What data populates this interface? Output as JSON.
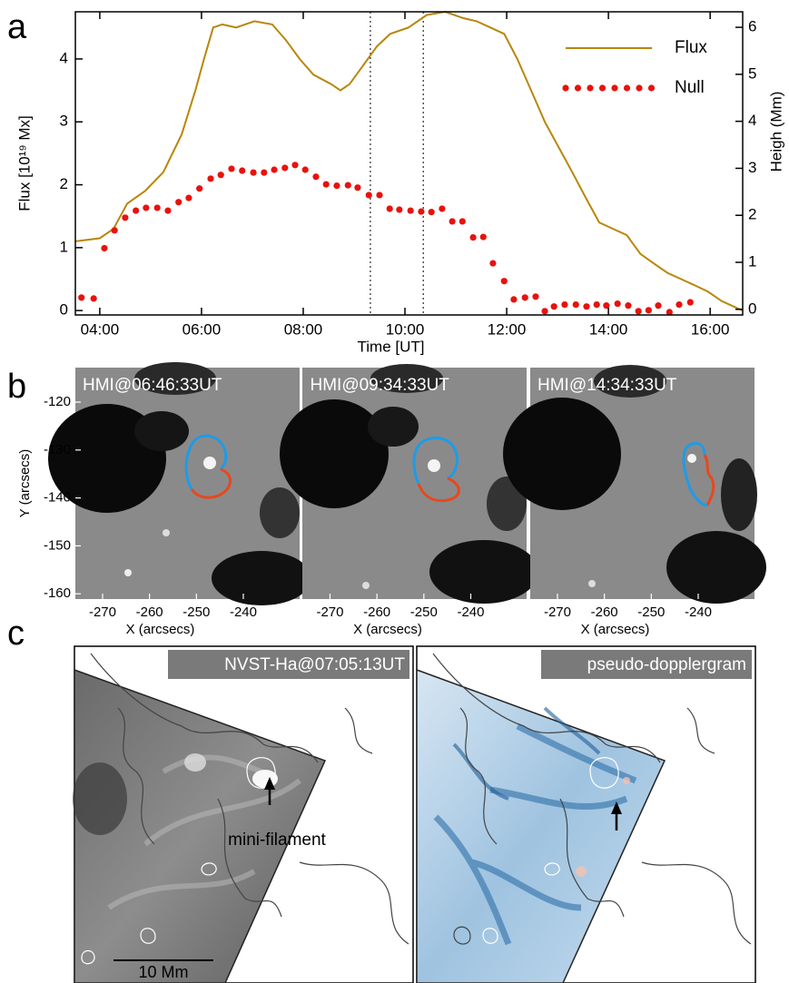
{
  "panel_labels": [
    "a",
    "b",
    "c"
  ],
  "chart_data": {
    "type": "line",
    "xlabel": "Time [UT]",
    "ylabel": "Flux [10¹⁹ Mx]",
    "y2label": "Heigh (Mm)",
    "xlim": [
      3.52,
      16.64
    ],
    "xticks": [
      {
        "value": 4,
        "label": "04:00"
      },
      {
        "value": 6,
        "label": "06:00"
      },
      {
        "value": 8,
        "label": "08:00"
      },
      {
        "value": 10,
        "label": "10:00"
      },
      {
        "value": 12,
        "label": "12:00"
      },
      {
        "value": 14,
        "label": "14:00"
      },
      {
        "value": 16,
        "label": "16:00"
      }
    ],
    "ylim": [
      -0.07,
      4.75
    ],
    "yticks": [
      0,
      1,
      2,
      3,
      4
    ],
    "y2lim": [
      -0.12,
      6.33
    ],
    "y2ticks": [
      0,
      1,
      2,
      3,
      4,
      5,
      6
    ],
    "legend": "upper right",
    "vlines": [
      9.32,
      10.36
    ],
    "series": [
      {
        "name": "Flux",
        "color": "#b8860b",
        "style": "line",
        "x": [
          3.52,
          4,
          4.27,
          4.54,
          4.89,
          5.25,
          5.61,
          5.88,
          6.05,
          6.23,
          6.41,
          6.68,
          7.04,
          7.39,
          7.66,
          7.93,
          8.2,
          8.55,
          8.73,
          8.91,
          9.18,
          9.45,
          9.71,
          10.07,
          10.43,
          10.79,
          11.14,
          11.41,
          11.68,
          11.95,
          12.21,
          12.48,
          12.75,
          13.02,
          13.29,
          13.55,
          13.82,
          14.09,
          14.36,
          14.63,
          14.89,
          15.16,
          15.43,
          15.7,
          15.96,
          16.23,
          16.5,
          16.64
        ],
        "values": [
          1.1,
          1.15,
          1.3,
          1.7,
          1.9,
          2.2,
          2.8,
          3.5,
          4.0,
          4.5,
          4.55,
          4.5,
          4.6,
          4.55,
          4.3,
          4.0,
          3.75,
          3.6,
          3.5,
          3.6,
          3.9,
          4.2,
          4.4,
          4.5,
          4.7,
          4.75,
          4.65,
          4.6,
          4.5,
          4.4,
          4.0,
          3.5,
          3.0,
          2.6,
          2.2,
          1.8,
          1.4,
          1.3,
          1.2,
          0.9,
          0.75,
          0.6,
          0.5,
          0.4,
          0.3,
          0.15,
          0.05,
          0
        ]
      },
      {
        "name": "Null",
        "color": "#e8120c",
        "style": "dots",
        "axis": "y2",
        "x": [
          3.64,
          3.88,
          4.09,
          4.29,
          4.5,
          4.71,
          4.91,
          5.13,
          5.34,
          5.55,
          5.75,
          5.96,
          6.18,
          6.38,
          6.59,
          6.8,
          7.02,
          7.23,
          7.43,
          7.64,
          7.84,
          8.04,
          8.25,
          8.45,
          8.66,
          8.88,
          9.07,
          9.29,
          9.5,
          9.7,
          9.89,
          10.11,
          10.32,
          10.52,
          10.73,
          10.93,
          11.13,
          11.34,
          11.54,
          11.73,
          11.95,
          12.14,
          12.36,
          12.57,
          12.75,
          12.93,
          13.14,
          13.36,
          13.57,
          13.77,
          13.96,
          14.18,
          14.39,
          14.59,
          14.79,
          14.98,
          15.2,
          15.39,
          15.61
        ],
        "values": [
          0.25,
          0.23,
          1.3,
          1.68,
          1.95,
          2.1,
          2.16,
          2.16,
          2.1,
          2.28,
          2.37,
          2.57,
          2.78,
          2.86,
          2.99,
          2.95,
          2.91,
          2.91,
          2.97,
          3.01,
          3.07,
          2.97,
          2.82,
          2.66,
          2.63,
          2.64,
          2.59,
          2.43,
          2.43,
          2.14,
          2.12,
          2.1,
          2.08,
          2.07,
          2.14,
          1.87,
          1.87,
          1.53,
          1.54,
          0.98,
          0.6,
          0.21,
          0.25,
          0.27,
          -0.04,
          0.06,
          0.1,
          0.1,
          0.06,
          0.1,
          0.08,
          0.12,
          0.08,
          -0.04,
          -0.02,
          0.08,
          -0.06,
          0.1,
          0.15
        ]
      }
    ]
  },
  "hmi": {
    "ylabel": "Y (arcsecs)",
    "xlabel": "X (arcsecs)",
    "xlim": [
      -275.8,
      -228
    ],
    "ylim": [
      -161.1,
      -112.8
    ],
    "xticks": [
      -270,
      -260,
      -250,
      -240
    ],
    "yticks": [
      -120,
      -130,
      -140,
      -150,
      -160
    ],
    "frames": [
      "HMI@06:46:33UT",
      "HMI@09:34:33UT",
      "HMI@14:34:33UT"
    ]
  },
  "nvst": {
    "frames": [
      "NVST-Ha@07:05:13UT",
      "pseudo-dopplergram"
    ],
    "annotation": "mini-filament",
    "scale_bar": "10 Mm"
  }
}
